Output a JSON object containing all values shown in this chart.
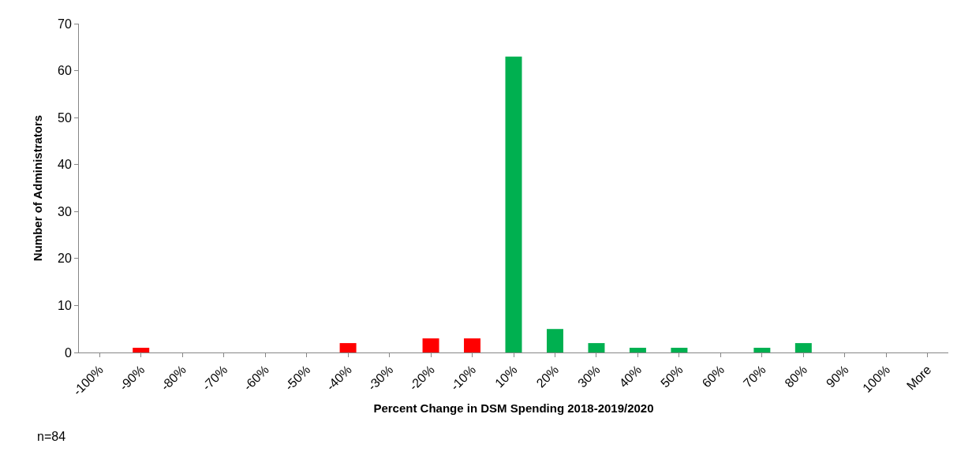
{
  "chart_data": {
    "type": "bar",
    "xlabel": "Percent Change in DSM Spending 2018-2019/2020",
    "ylabel": "Number of Administrators",
    "categories": [
      "-100%",
      "-90%",
      "-80%",
      "-70%",
      "-60%",
      "-50%",
      "-40%",
      "-30%",
      "-20%",
      "-10%",
      "10%",
      "20%",
      "30%",
      "40%",
      "50%",
      "60%",
      "70%",
      "80%",
      "90%",
      "100%",
      "More"
    ],
    "values": [
      0,
      1,
      0,
      0,
      0,
      0,
      2,
      0,
      3,
      3,
      63,
      5,
      2,
      1,
      1,
      0,
      1,
      2,
      0,
      0,
      0
    ],
    "colors": [
      "#ff0000",
      "#ff0000",
      "#ff0000",
      "#ff0000",
      "#ff0000",
      "#ff0000",
      "#ff0000",
      "#ff0000",
      "#ff0000",
      "#ff0000",
      "#00b050",
      "#00b050",
      "#00b050",
      "#00b050",
      "#00b050",
      "#00b050",
      "#00b050",
      "#00b050",
      "#00b050",
      "#00b050",
      "#00b050"
    ],
    "ylim": [
      0,
      70
    ],
    "yticks": [
      0,
      10,
      20,
      30,
      40,
      50,
      60,
      70
    ],
    "annotations": [
      "n=84"
    ]
  }
}
